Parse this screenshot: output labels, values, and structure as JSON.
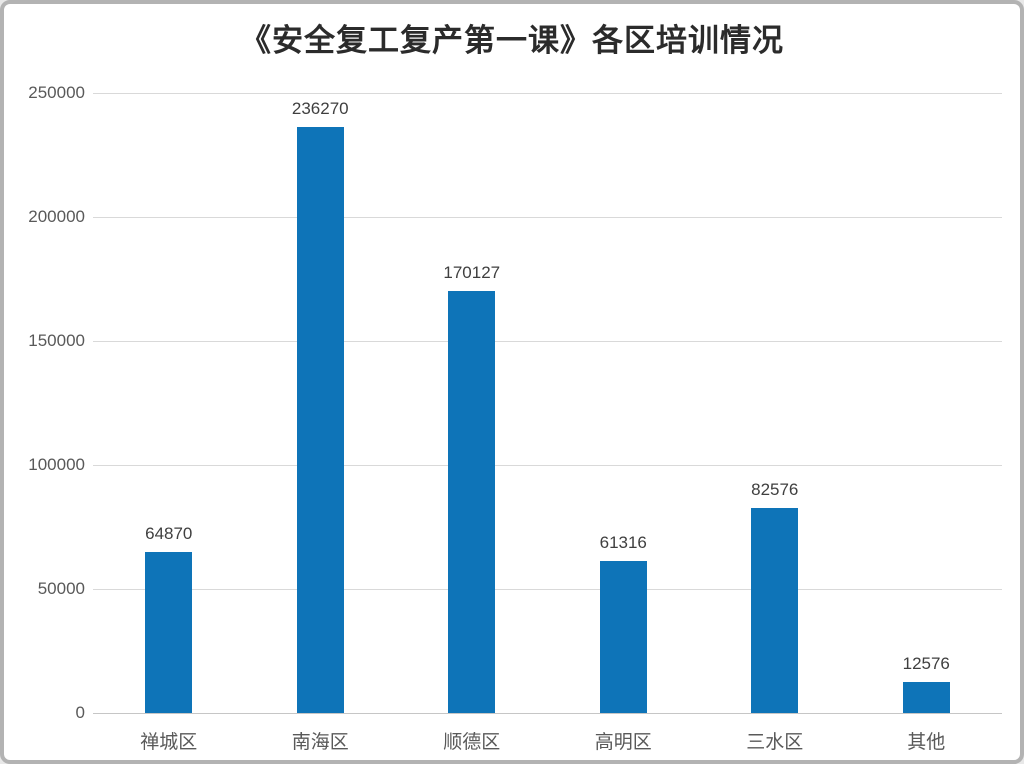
{
  "frame": {
    "background": "#ffffff",
    "border_color": "#b3b3b3"
  },
  "chart_data": {
    "type": "bar",
    "title": "《安全复工复产第一课》各区培训情况",
    "categories": [
      "禅城区",
      "南海区",
      "顺德区",
      "高明区",
      "三水区",
      "其他"
    ],
    "values": [
      64870,
      236270,
      170127,
      61316,
      82576,
      12576
    ],
    "data_labels": [
      "64870",
      "236270",
      "170127",
      "61316",
      "82576",
      "12576"
    ],
    "xlabel": "",
    "ylabel": "",
    "ylim": [
      0,
      250000
    ],
    "yticks": [
      0,
      50000,
      100000,
      150000,
      200000,
      250000
    ],
    "ytick_labels": [
      "0",
      "50000",
      "100000",
      "150000",
      "200000",
      "250000"
    ],
    "grid": "horizontal",
    "legend": "none",
    "colors": {
      "bar": "#0e74b8",
      "gridline": "#d9d9d9",
      "axis_text": "#595959",
      "data_label_text": "#3f3f3f",
      "title_text": "#2b2b2b"
    }
  }
}
